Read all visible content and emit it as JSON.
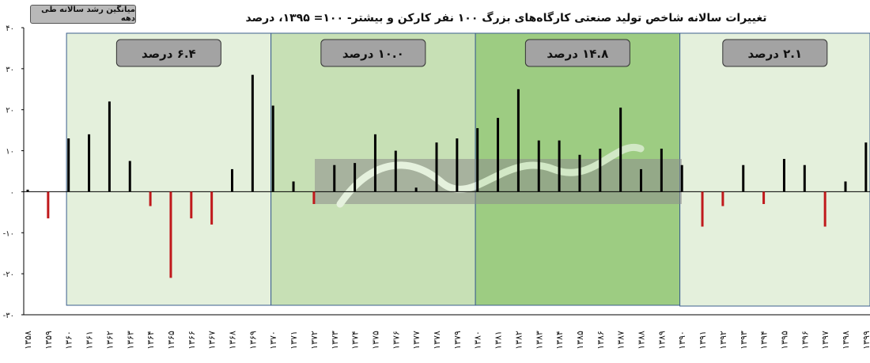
{
  "legend_label": "میانگین رشد سالانه طی دهه",
  "chart_data": {
    "type": "bar",
    "title": "تغییرات سالانه شاخص تولید صنعتی کارگاه‌های بزرگ ۱۰۰ نفر کارکن و بیشتر- ۱۰۰= ۱۳۹۵، درصد",
    "ylim": [
      -30,
      40
    ],
    "yticks": [
      40,
      30,
      20,
      10,
      0,
      -10,
      -20,
      -30
    ],
    "ytick_labels": [
      "۴۰",
      "۳۰",
      "۲۰",
      "۱۰",
      "۰",
      "-۱۰",
      "-۲۰",
      "-۳۰"
    ],
    "categories": [
      "۱۳۵۸",
      "۱۳۵۹",
      "۱۳۶۰",
      "۱۳۶۱",
      "۱۳۶۲",
      "۱۳۶۳",
      "۱۳۶۴",
      "۱۳۶۵",
      "۱۳۶۶",
      "۱۳۶۷",
      "۱۳۶۸",
      "۱۳۶۹",
      "۱۳۷۰",
      "۱۳۷۱",
      "۱۳۷۲",
      "۱۳۷۳",
      "۱۳۷۴",
      "۱۳۷۵",
      "۱۳۷۶",
      "۱۳۷۷",
      "۱۳۷۸",
      "۱۳۷۹",
      "۱۳۸۰",
      "۱۳۸۱",
      "۱۳۸۲",
      "۱۳۸۳",
      "۱۳۸۴",
      "۱۳۸۵",
      "۱۳۸۶",
      "۱۳۸۷",
      "۱۳۸۸",
      "۱۳۸۹",
      "۱۳۹۰",
      "۱۳۹۱",
      "۱۳۹۲",
      "۱۳۹۳",
      "۱۳۹۴",
      "۱۳۹۵",
      "۱۳۹۶",
      "۱۳۹۷",
      "۱۳۹۸",
      "۱۳۹۹"
    ],
    "values": [
      0.5,
      -6.5,
      13,
      14,
      22,
      7.5,
      -3.5,
      -21,
      -6.5,
      -8,
      5.5,
      28.5,
      21,
      2.5,
      -3,
      6.5,
      7,
      14,
      10,
      1,
      12,
      13,
      15.5,
      18,
      25,
      12.5,
      12.5,
      9,
      10.5,
      20.5,
      5.5,
      10.5,
      6.5,
      -8.5,
      -3.5,
      6.5,
      -3,
      8,
      6.5,
      -8.5,
      2.5,
      12
    ],
    "colors": {
      "positive": "#000000",
      "negative": "#c0191c"
    },
    "decades": [
      {
        "label": "۶.۴ درصد",
        "from": 2,
        "to": 12,
        "fill": "#e4f0dc"
      },
      {
        "label": "۱۰.۰ درصد",
        "from": 12,
        "to": 22,
        "fill": "#c7e0b5"
      },
      {
        "label": "۱۴.۸ درصد",
        "from": 22,
        "to": 32,
        "fill": "#9dcc82"
      },
      {
        "label": "۲.۱ درصد",
        "from": 32,
        "to": 42,
        "fill": "#e4f0dc"
      }
    ],
    "grid": false
  }
}
